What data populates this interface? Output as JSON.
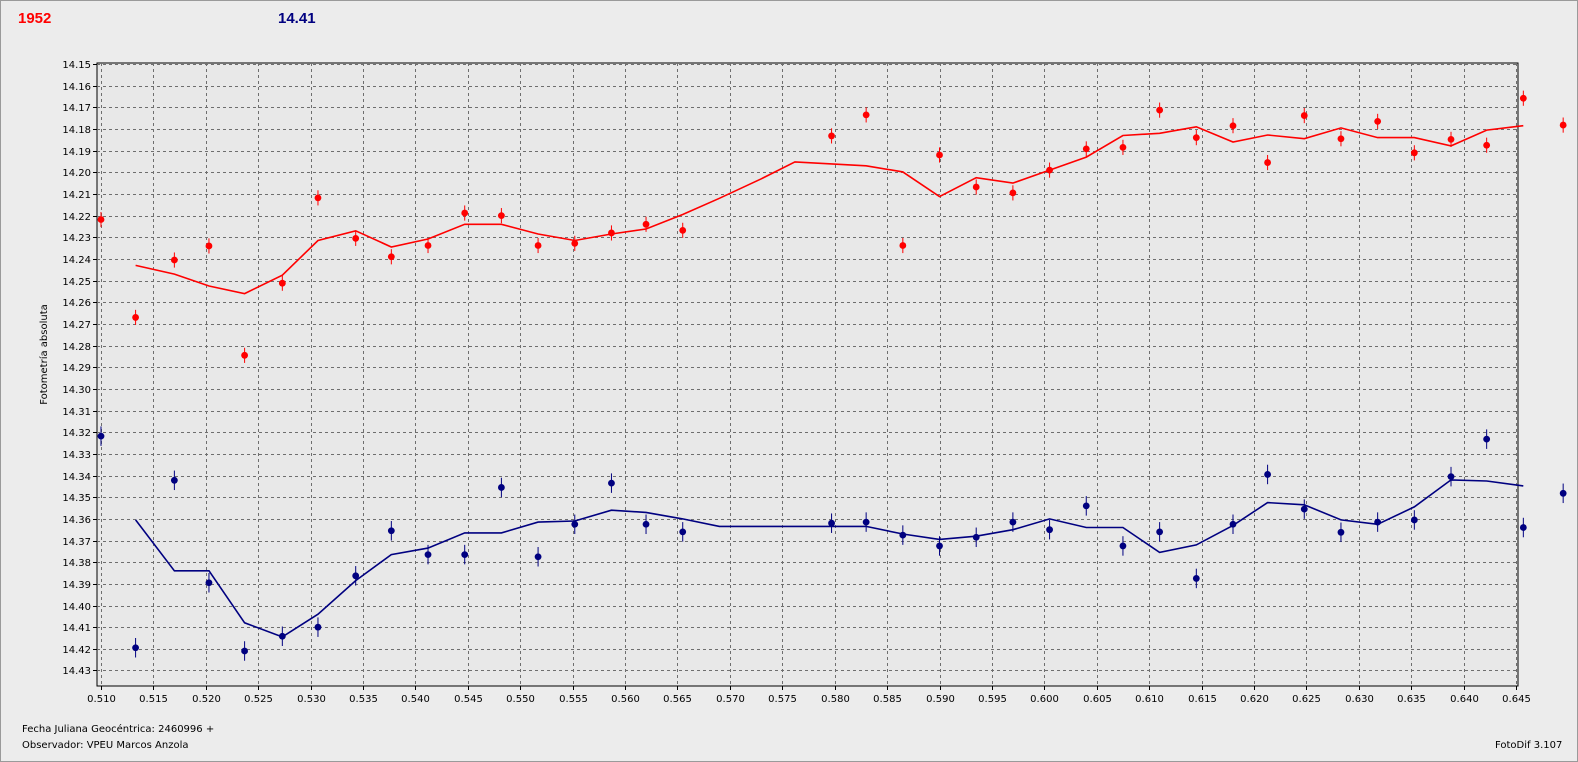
{
  "header": {
    "left_value": "1952",
    "right_value": "14.41",
    "left_color": "#ff0000",
    "right_color": "#000080"
  },
  "footer": {
    "julian_label": "Fecha Juliana Geocéntrica: 2460996 +",
    "observer_label": "Observador: VPEU Marcos Anzola",
    "software": "FotoDif 3.107"
  },
  "chart_data": {
    "type": "scatter",
    "ylabel": "Fotometría absoluta",
    "xlabel": "",
    "xlim": [
      0.51,
      0.6495
    ],
    "ylim": [
      14.15,
      14.4375
    ],
    "y_inverted": true,
    "grid": true,
    "x_ticks": [
      "0.510",
      "0.515",
      "0.520",
      "0.525",
      "0.530",
      "0.535",
      "0.540",
      "0.545",
      "0.550",
      "0.555",
      "0.560",
      "0.565",
      "0.570",
      "0.575",
      "0.580",
      "0.585",
      "0.590",
      "0.595",
      "0.600",
      "0.605",
      "0.610",
      "0.615",
      "0.620",
      "0.625",
      "0.630",
      "0.635",
      "0.640",
      "0.645"
    ],
    "y_ticks": [
      "14.15",
      "14.16",
      "14.17",
      "14.18",
      "14.19",
      "14.20",
      "14.21",
      "14.22",
      "14.23",
      "14.24",
      "14.25",
      "14.26",
      "14.27",
      "14.28",
      "14.29",
      "14.30",
      "14.31",
      "14.32",
      "14.33",
      "14.34",
      "14.35",
      "14.36",
      "14.37",
      "14.38",
      "14.39",
      "14.40",
      "14.41",
      "14.42",
      "14.43"
    ],
    "colors": {
      "red": "#ff0000",
      "blue": "#000080",
      "grid": "#6e6e6e",
      "plot_bg": "#e8e8e8"
    },
    "series": [
      {
        "color": "#ff0000",
        "error": 0.0035,
        "points": [
          [
            0.51,
            14.2218
          ],
          [
            0.5133,
            14.267
          ],
          [
            0.517,
            14.2405
          ],
          [
            0.5203,
            14.234
          ],
          [
            0.5237,
            14.2845
          ],
          [
            0.5273,
            14.2512
          ],
          [
            0.5307,
            14.2118
          ],
          [
            0.5343,
            14.2305
          ],
          [
            0.5377,
            14.239
          ],
          [
            0.5412,
            14.2338
          ],
          [
            0.5447,
            14.2188
          ],
          [
            0.5482,
            14.22
          ],
          [
            0.5517,
            14.2338
          ],
          [
            0.5552,
            14.2328
          ],
          [
            0.5587,
            14.228
          ],
          [
            0.562,
            14.224
          ],
          [
            0.5655,
            14.2268
          ],
          [
            0.5797,
            14.1832
          ],
          [
            0.583,
            14.1735
          ],
          [
            0.5865,
            14.2338
          ],
          [
            0.59,
            14.192
          ],
          [
            0.5935,
            14.2068
          ],
          [
            0.597,
            14.2095
          ],
          [
            0.6005,
            14.199
          ],
          [
            0.604,
            14.1892
          ],
          [
            0.6075,
            14.1885
          ],
          [
            0.611,
            14.1713
          ],
          [
            0.6145,
            14.184
          ],
          [
            0.618,
            14.1785
          ],
          [
            0.6213,
            14.1955
          ],
          [
            0.6248,
            14.1738
          ],
          [
            0.6283,
            14.1845
          ],
          [
            0.6318,
            14.1765
          ],
          [
            0.6353,
            14.191
          ],
          [
            0.6388,
            14.1848
          ],
          [
            0.6422,
            14.1875
          ],
          [
            0.6457,
            14.1658
          ],
          [
            0.6495,
            14.1782
          ]
        ],
        "line": [
          [
            0.5133,
            14.243
          ],
          [
            0.517,
            14.247
          ],
          [
            0.5203,
            14.2525
          ],
          [
            0.5237,
            14.256
          ],
          [
            0.5273,
            14.2475
          ],
          [
            0.5307,
            14.2315
          ],
          [
            0.5343,
            14.227
          ],
          [
            0.5377,
            14.2345
          ],
          [
            0.5412,
            14.2308
          ],
          [
            0.5447,
            14.224
          ],
          [
            0.5482,
            14.224
          ],
          [
            0.5517,
            14.2285
          ],
          [
            0.5552,
            14.2315
          ],
          [
            0.5587,
            14.2285
          ],
          [
            0.562,
            14.2262
          ],
          [
            0.5655,
            14.2195
          ],
          [
            0.569,
            14.212
          ],
          [
            0.573,
            14.203
          ],
          [
            0.5762,
            14.1952
          ],
          [
            0.583,
            14.197
          ],
          [
            0.5865,
            14.1998
          ],
          [
            0.59,
            14.2112
          ],
          [
            0.5935,
            14.2025
          ],
          [
            0.597,
            14.205
          ],
          [
            0.6005,
            14.199
          ],
          [
            0.604,
            14.193
          ],
          [
            0.6075,
            14.183
          ],
          [
            0.611,
            14.182
          ],
          [
            0.6145,
            14.179
          ],
          [
            0.618,
            14.186
          ],
          [
            0.6213,
            14.1828
          ],
          [
            0.6248,
            14.1845
          ],
          [
            0.6283,
            14.1795
          ],
          [
            0.6318,
            14.184
          ],
          [
            0.6353,
            14.184
          ],
          [
            0.6388,
            14.1878
          ],
          [
            0.6422,
            14.1805
          ],
          [
            0.6457,
            14.1785
          ]
        ]
      },
      {
        "color": "#000080",
        "error": 0.0045,
        "points": [
          [
            0.51,
            14.3218
          ],
          [
            0.5133,
            14.4195
          ],
          [
            0.517,
            14.3422
          ],
          [
            0.5203,
            14.3895
          ],
          [
            0.5237,
            14.421
          ],
          [
            0.5273,
            14.4142
          ],
          [
            0.5307,
            14.41
          ],
          [
            0.5343,
            14.3863
          ],
          [
            0.5377,
            14.3655
          ],
          [
            0.5412,
            14.3765
          ],
          [
            0.5447,
            14.3765
          ],
          [
            0.5482,
            14.3455
          ],
          [
            0.5517,
            14.3775
          ],
          [
            0.5552,
            14.3625
          ],
          [
            0.5587,
            14.3435
          ],
          [
            0.562,
            14.3625
          ],
          [
            0.5655,
            14.366
          ],
          [
            0.5797,
            14.362
          ],
          [
            0.583,
            14.3615
          ],
          [
            0.5865,
            14.3675
          ],
          [
            0.59,
            14.3725
          ],
          [
            0.5935,
            14.3685
          ],
          [
            0.597,
            14.3615
          ],
          [
            0.6005,
            14.365
          ],
          [
            0.604,
            14.354
          ],
          [
            0.6075,
            14.3725
          ],
          [
            0.611,
            14.366
          ],
          [
            0.6145,
            14.3875
          ],
          [
            0.618,
            14.3625
          ],
          [
            0.6213,
            14.3395
          ],
          [
            0.6248,
            14.3555
          ],
          [
            0.6283,
            14.3662
          ],
          [
            0.6318,
            14.3615
          ],
          [
            0.6353,
            14.3605
          ],
          [
            0.6388,
            14.3405
          ],
          [
            0.6422,
            14.3232
          ],
          [
            0.6457,
            14.364
          ],
          [
            0.6495,
            14.3482
          ]
        ],
        "line": [
          [
            0.5133,
            14.3605
          ],
          [
            0.517,
            14.384
          ],
          [
            0.5203,
            14.384
          ],
          [
            0.5237,
            14.408
          ],
          [
            0.5273,
            14.4145
          ],
          [
            0.5307,
            14.404
          ],
          [
            0.5343,
            14.3885
          ],
          [
            0.5377,
            14.3765
          ],
          [
            0.5412,
            14.3735
          ],
          [
            0.5447,
            14.3665
          ],
          [
            0.5482,
            14.3665
          ],
          [
            0.5517,
            14.3615
          ],
          [
            0.5552,
            14.361
          ],
          [
            0.5587,
            14.356
          ],
          [
            0.562,
            14.357
          ],
          [
            0.5655,
            14.36
          ],
          [
            0.569,
            14.3635
          ],
          [
            0.583,
            14.3635
          ],
          [
            0.5865,
            14.367
          ],
          [
            0.59,
            14.3695
          ],
          [
            0.5935,
            14.368
          ],
          [
            0.597,
            14.365
          ],
          [
            0.6005,
            14.36
          ],
          [
            0.604,
            14.364
          ],
          [
            0.6075,
            14.364
          ],
          [
            0.611,
            14.3755
          ],
          [
            0.6145,
            14.372
          ],
          [
            0.618,
            14.363
          ],
          [
            0.6213,
            14.3525
          ],
          [
            0.6248,
            14.3535
          ],
          [
            0.6283,
            14.3605
          ],
          [
            0.6318,
            14.3625
          ],
          [
            0.6353,
            14.3545
          ],
          [
            0.6388,
            14.342
          ],
          [
            0.6422,
            14.3425
          ],
          [
            0.6457,
            14.3448
          ]
        ]
      }
    ]
  }
}
